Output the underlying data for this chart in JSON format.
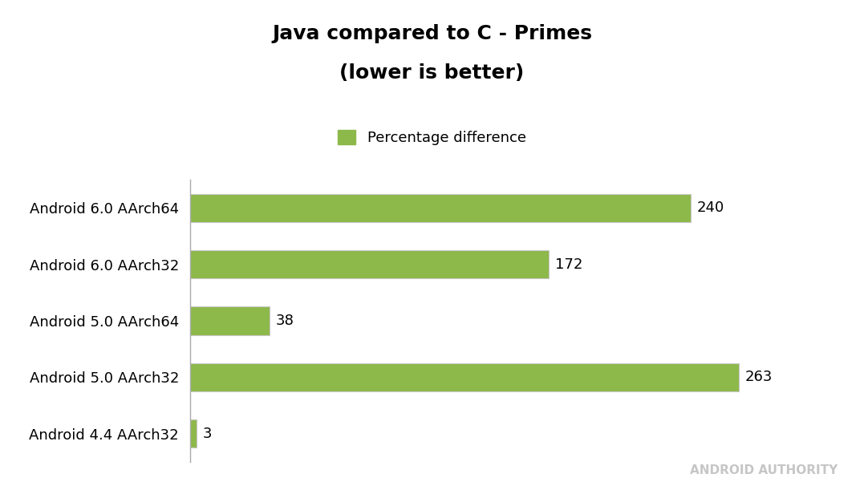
{
  "title_line1": "Java compared to C - Primes",
  "title_line2": "(lower is better)",
  "categories": [
    "Android 6.0 AArch64",
    "Android 6.0 AArch32",
    "Android 5.0 AArch64",
    "Android 5.0 AArch32",
    "Android 4.4 AArch32"
  ],
  "values": [
    3,
    263,
    38,
    172,
    240
  ],
  "bar_color": "#8db84a",
  "bar_edge_color": "#c8c8c8",
  "legend_label": "Percentage difference",
  "background_color": "#ffffff",
  "watermark": "ANDROID AUTHORITY",
  "xlim": [
    0,
    290
  ],
  "title_fontsize": 18,
  "label_fontsize": 13,
  "tick_fontsize": 13,
  "value_fontsize": 13,
  "bar_height": 0.5
}
